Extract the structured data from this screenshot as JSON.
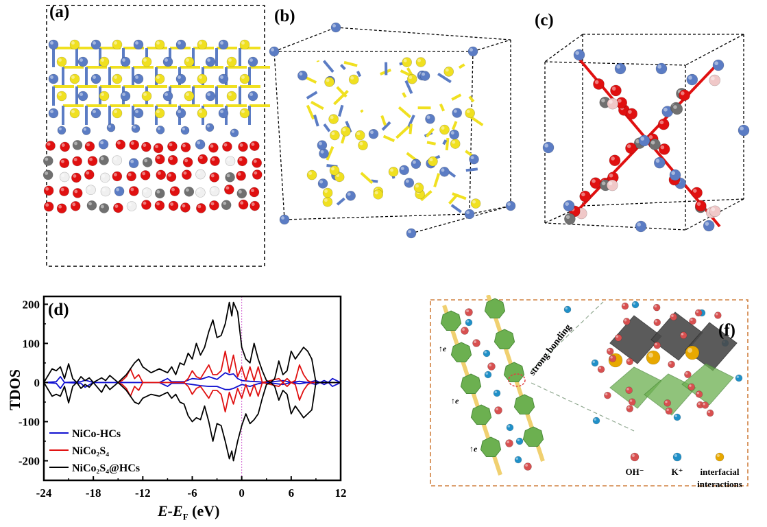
{
  "panels": {
    "a": {
      "label": "(a)"
    },
    "b": {
      "label": "(b)"
    },
    "c": {
      "label": "(c)"
    },
    "d": {
      "label": "(d)"
    },
    "f": {
      "label": "(f)"
    }
  },
  "colors": {
    "Ni_Co_atom": "#5b7cc4",
    "S_atom": "#f0e020",
    "O_atom": "#e01010",
    "C_atom": "#707070",
    "H_atom": "#f0f0f0",
    "polyhedron_green": "#6cb050",
    "OH_ion": "#d85050",
    "K_ion": "#2090c8",
    "interfacial": "#e8a800",
    "frame_orange": "#d08040"
  },
  "chart_data": {
    "type": "line",
    "title": "",
    "xlabel_main": "E-E",
    "xlabel_sub": "F",
    "xlabel_unit": " (eV)",
    "ylabel": "TDOS",
    "xlim": [
      -24,
      12
    ],
    "ylim": [
      -250,
      220
    ],
    "xticks": [
      -24,
      -18,
      -12,
      -6,
      0,
      6,
      12
    ],
    "yticks": [
      -200,
      -100,
      0,
      100,
      200
    ],
    "fermi_line_x": 0,
    "legend_position": "bottom-left",
    "series": [
      {
        "name": "NiCo-HCs",
        "color": "#1010d0",
        "up": [
          [
            -24,
            0
          ],
          [
            -22.5,
            2
          ],
          [
            -22,
            15
          ],
          [
            -21.5,
            0
          ],
          [
            -19.5,
            2
          ],
          [
            -19,
            6
          ],
          [
            -18,
            0
          ],
          [
            -10,
            0
          ],
          [
            -9,
            10
          ],
          [
            -8.5,
            2
          ],
          [
            -7,
            2
          ],
          [
            -6,
            10
          ],
          [
            -5,
            8
          ],
          [
            -4,
            15
          ],
          [
            -3,
            8
          ],
          [
            -2,
            25
          ],
          [
            -1.5,
            20
          ],
          [
            -1,
            22
          ],
          [
            -0.5,
            10
          ],
          [
            0,
            5
          ],
          [
            1,
            3
          ],
          [
            2,
            2
          ],
          [
            3,
            0
          ],
          [
            5,
            5
          ],
          [
            6,
            0
          ],
          [
            7,
            3
          ],
          [
            8,
            0
          ],
          [
            9,
            5
          ],
          [
            9.5,
            0
          ],
          [
            10,
            5
          ],
          [
            10.5,
            0
          ],
          [
            11,
            10
          ],
          [
            11.5,
            5
          ],
          [
            12,
            0
          ]
        ],
        "down": [
          [
            -24,
            0
          ],
          [
            -22.5,
            -2
          ],
          [
            -22,
            -15
          ],
          [
            -21.5,
            0
          ],
          [
            -19.5,
            -2
          ],
          [
            -19,
            -12
          ],
          [
            -18,
            0
          ],
          [
            -10,
            0
          ],
          [
            -9,
            -10
          ],
          [
            -8.5,
            -2
          ],
          [
            -7,
            -2
          ],
          [
            -6,
            -5
          ],
          [
            -5,
            -8
          ],
          [
            -4,
            -10
          ],
          [
            -3,
            -10
          ],
          [
            -2,
            -18
          ],
          [
            -1.5,
            -18
          ],
          [
            -1,
            -15
          ],
          [
            0,
            -5
          ],
          [
            1,
            -10
          ],
          [
            2,
            -3
          ],
          [
            3,
            0
          ],
          [
            5,
            -5
          ],
          [
            6,
            0
          ],
          [
            7,
            -3
          ],
          [
            8,
            0
          ],
          [
            9,
            -5
          ],
          [
            9.5,
            0
          ],
          [
            10,
            -5
          ],
          [
            10.5,
            0
          ],
          [
            11,
            -10
          ],
          [
            11.5,
            -5
          ],
          [
            12,
            0
          ]
        ]
      },
      {
        "name": "NiCo₂S₄",
        "color": "#e01010",
        "up": [
          [
            -15,
            0
          ],
          [
            -14.5,
            5
          ],
          [
            -14,
            15
          ],
          [
            -13.5,
            35
          ],
          [
            -13,
            10
          ],
          [
            -12.5,
            20
          ],
          [
            -12,
            0
          ],
          [
            -7,
            0
          ],
          [
            -6.5,
            10
          ],
          [
            -6,
            30
          ],
          [
            -5.5,
            15
          ],
          [
            -5,
            10
          ],
          [
            -4,
            45
          ],
          [
            -3.5,
            20
          ],
          [
            -3,
            20
          ],
          [
            -2.5,
            30
          ],
          [
            -2,
            80
          ],
          [
            -1.5,
            25
          ],
          [
            -1,
            70
          ],
          [
            -0.5,
            15
          ],
          [
            0,
            40
          ],
          [
            0.5,
            5
          ],
          [
            1,
            40
          ],
          [
            1.5,
            5
          ],
          [
            2,
            40
          ],
          [
            2.5,
            0
          ],
          [
            4.5,
            10
          ],
          [
            5,
            0
          ],
          [
            5.5,
            10
          ],
          [
            6,
            0
          ],
          [
            6.5,
            5
          ],
          [
            7,
            45
          ],
          [
            7.5,
            20
          ],
          [
            8,
            5
          ],
          [
            8.5,
            0
          ],
          [
            12,
            0
          ]
        ],
        "down": [
          [
            -15,
            0
          ],
          [
            -14.5,
            -5
          ],
          [
            -14,
            -15
          ],
          [
            -13.5,
            -35
          ],
          [
            -13,
            -10
          ],
          [
            -12.5,
            -20
          ],
          [
            -12,
            0
          ],
          [
            -7,
            0
          ],
          [
            -6.5,
            -10
          ],
          [
            -6,
            -30
          ],
          [
            -5.5,
            -15
          ],
          [
            -5,
            -10
          ],
          [
            -4,
            -40
          ],
          [
            -3.5,
            -20
          ],
          [
            -3,
            -20
          ],
          [
            -2.5,
            -30
          ],
          [
            -2,
            -75
          ],
          [
            -1.5,
            -25
          ],
          [
            -1,
            -55
          ],
          [
            -0.5,
            -15
          ],
          [
            0,
            -40
          ],
          [
            0.5,
            -5
          ],
          [
            1,
            -35
          ],
          [
            1.5,
            -5
          ],
          [
            2,
            -35
          ],
          [
            2.5,
            0
          ],
          [
            4.5,
            -10
          ],
          [
            5,
            0
          ],
          [
            5.5,
            -10
          ],
          [
            6,
            0
          ],
          [
            6.5,
            -5
          ],
          [
            7,
            -45
          ],
          [
            7.5,
            -20
          ],
          [
            8,
            -5
          ],
          [
            8.5,
            0
          ],
          [
            12,
            0
          ]
        ]
      },
      {
        "name": "NiCo₂S₄@HCs",
        "color": "#000000",
        "up": [
          [
            -24,
            0
          ],
          [
            -23,
            35
          ],
          [
            -22.5,
            30
          ],
          [
            -22,
            40
          ],
          [
            -21.5,
            10
          ],
          [
            -21,
            48
          ],
          [
            -20.5,
            10
          ],
          [
            -20,
            0
          ],
          [
            -19.5,
            15
          ],
          [
            -19,
            5
          ],
          [
            -18.5,
            12
          ],
          [
            -18,
            0
          ],
          [
            -17,
            12
          ],
          [
            -16.5,
            5
          ],
          [
            -16,
            18
          ],
          [
            -15,
            0
          ],
          [
            -14.5,
            10
          ],
          [
            -14,
            20
          ],
          [
            -13,
            50
          ],
          [
            -12.5,
            60
          ],
          [
            -12,
            40
          ],
          [
            -11,
            25
          ],
          [
            -10,
            35
          ],
          [
            -9,
            25
          ],
          [
            -8.5,
            40
          ],
          [
            -8,
            20
          ],
          [
            -7.5,
            50
          ],
          [
            -7,
            45
          ],
          [
            -6.5,
            75
          ],
          [
            -6,
            60
          ],
          [
            -5.5,
            100
          ],
          [
            -5,
            70
          ],
          [
            -4.5,
            90
          ],
          [
            -4,
            130
          ],
          [
            -3.5,
            160
          ],
          [
            -3,
            115
          ],
          [
            -2.5,
            120
          ],
          [
            -2,
            150
          ],
          [
            -1.5,
            205
          ],
          [
            -1.2,
            170
          ],
          [
            -1,
            205
          ],
          [
            -0.5,
            180
          ],
          [
            0,
            90
          ],
          [
            0.5,
            60
          ],
          [
            1,
            50
          ],
          [
            1.5,
            100
          ],
          [
            2,
            60
          ],
          [
            2.5,
            30
          ],
          [
            3,
            5
          ],
          [
            3.5,
            0
          ],
          [
            4,
            10
          ],
          [
            4.5,
            55
          ],
          [
            5,
            20
          ],
          [
            5.5,
            30
          ],
          [
            6,
            80
          ],
          [
            6.5,
            60
          ],
          [
            7,
            75
          ],
          [
            7.5,
            90
          ],
          [
            8,
            80
          ],
          [
            8.5,
            60
          ],
          [
            9,
            0
          ],
          [
            12,
            0
          ]
        ],
        "down": [
          [
            -24,
            0
          ],
          [
            -23,
            -35
          ],
          [
            -22.5,
            -30
          ],
          [
            -22,
            -35
          ],
          [
            -21.5,
            -10
          ],
          [
            -21,
            -52
          ],
          [
            -20.5,
            -10
          ],
          [
            -20,
            0
          ],
          [
            -19.5,
            -15
          ],
          [
            -19,
            -5
          ],
          [
            -18.5,
            -12
          ],
          [
            -18,
            0
          ],
          [
            -17,
            -25
          ],
          [
            -16.5,
            -5
          ],
          [
            -16,
            -18
          ],
          [
            -15,
            0
          ],
          [
            -14.5,
            -10
          ],
          [
            -14,
            -20
          ],
          [
            -13,
            -50
          ],
          [
            -12.5,
            -55
          ],
          [
            -12,
            -40
          ],
          [
            -11,
            -30
          ],
          [
            -10,
            -35
          ],
          [
            -9,
            -25
          ],
          [
            -8.5,
            -40
          ],
          [
            -8,
            -30
          ],
          [
            -7.5,
            -50
          ],
          [
            -7,
            -55
          ],
          [
            -6.5,
            -85
          ],
          [
            -6,
            -100
          ],
          [
            -5.5,
            -90
          ],
          [
            -5,
            -95
          ],
          [
            -4.5,
            -60
          ],
          [
            -4,
            -100
          ],
          [
            -3.5,
            -150
          ],
          [
            -3,
            -105
          ],
          [
            -2.5,
            -110
          ],
          [
            -2,
            -150
          ],
          [
            -1.5,
            -195
          ],
          [
            -1.2,
            -175
          ],
          [
            -1,
            -200
          ],
          [
            -0.5,
            -150
          ],
          [
            0,
            -110
          ],
          [
            0.5,
            -80
          ],
          [
            1,
            -105
          ],
          [
            1.5,
            -95
          ],
          [
            2,
            -80
          ],
          [
            2.5,
            -40
          ],
          [
            3,
            -5
          ],
          [
            3.5,
            0
          ],
          [
            4,
            -10
          ],
          [
            4.5,
            -45
          ],
          [
            5,
            -20
          ],
          [
            5.5,
            -30
          ],
          [
            6,
            -80
          ],
          [
            6.5,
            -60
          ],
          [
            7,
            -75
          ],
          [
            7.5,
            -90
          ],
          [
            8,
            -80
          ],
          [
            8.5,
            -70
          ],
          [
            9,
            0
          ],
          [
            12,
            0
          ]
        ]
      }
    ]
  },
  "schematic_f": {
    "bonding_label": "strong bonding",
    "electron_label": "e",
    "legend": [
      {
        "label": "OH⁻",
        "color": "#d85050"
      },
      {
        "label": "K⁺",
        "color": "#2090c8"
      },
      {
        "label": "interfacial",
        "label2": "interactions",
        "color": "#e8a800"
      }
    ]
  }
}
